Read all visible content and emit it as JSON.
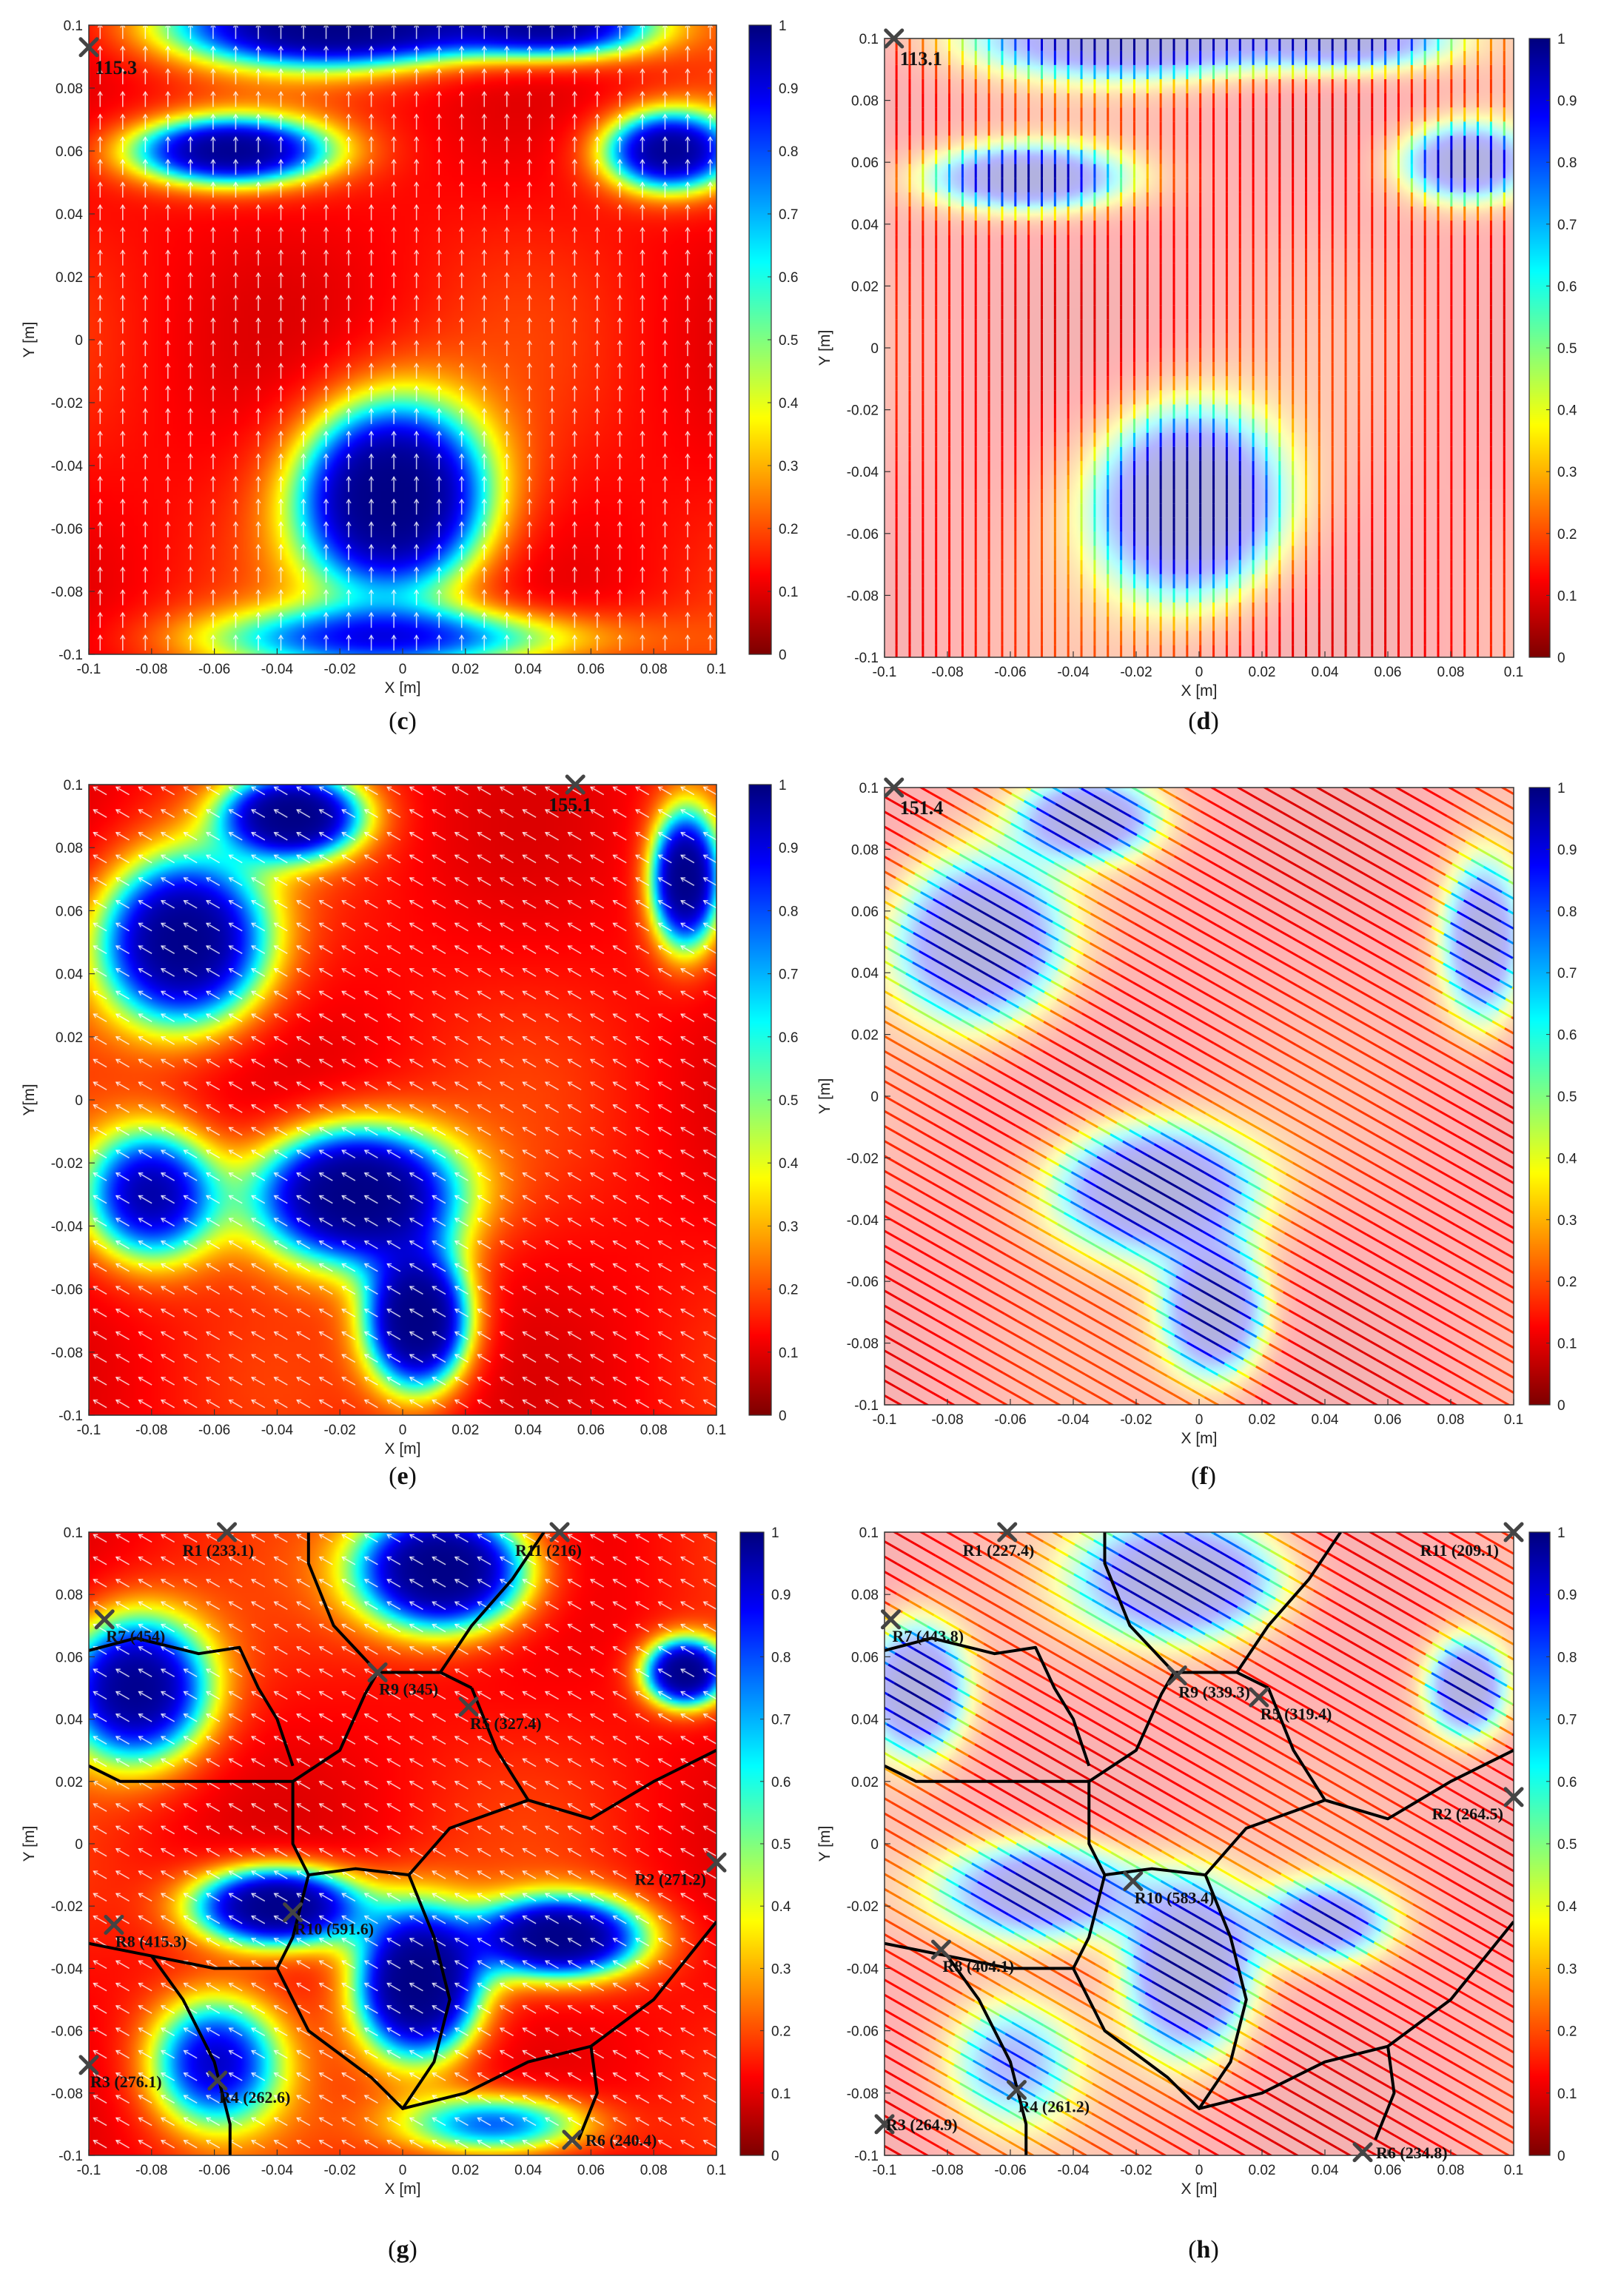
{
  "colormap": {
    "name": "reversed-jet",
    "stops": [
      "#7f0000",
      "#ff0000",
      "#ff8000",
      "#ffff00",
      "#80ff80",
      "#00ffff",
      "#0080ff",
      "#0000ff",
      "#00007f"
    ],
    "ticks": [
      "0",
      "0.1",
      "0.2",
      "0.3",
      "0.4",
      "0.5",
      "0.6",
      "0.7",
      "0.8",
      "0.9",
      "1"
    ]
  },
  "colors": {
    "path": "#ffffff",
    "boundary": "#000000",
    "marker": "#444444"
  },
  "chart_data": [
    {
      "panel": "c",
      "type": "heatmap",
      "overlay": "arrows",
      "angle_deg": 90,
      "xlabel": "X [m]",
      "ylabel": "Y [m]",
      "xlim": [
        -0.1,
        0.1
      ],
      "ylim": [
        -0.1,
        0.1
      ],
      "xticks": [
        "-0.1",
        "-0.08",
        "-0.06",
        "-0.04",
        "-0.02",
        "0",
        "0.02",
        "0.04",
        "0.06",
        "0.08",
        "0.1"
      ],
      "yticks": [
        "-0.1",
        "-0.08",
        "-0.06",
        "-0.04",
        "-0.02",
        "0",
        "0.02",
        "0.04",
        "0.06",
        "0.08",
        "0.1"
      ],
      "clim": [
        0,
        1
      ],
      "markers": [
        {
          "x": -0.1,
          "y": 0.093,
          "label": "115.3"
        }
      ],
      "blobs": [
        {
          "x": -0.003,
          "y": -0.05,
          "sx": 0.028,
          "sy": 0.028,
          "a": 1.0
        },
        {
          "x": -0.055,
          "y": 0.06,
          "sx": 0.03,
          "sy": 0.01,
          "a": 0.8
        },
        {
          "x": 0.085,
          "y": 0.06,
          "sx": 0.02,
          "sy": 0.012,
          "a": 0.8
        },
        {
          "x": -0.02,
          "y": 0.1,
          "sx": 0.05,
          "sy": 0.012,
          "a": 0.9
        },
        {
          "x": 0.05,
          "y": 0.1,
          "sx": 0.03,
          "sy": 0.01,
          "a": 0.7
        },
        {
          "x": 0.0,
          "y": -0.095,
          "sx": 0.06,
          "sy": 0.01,
          "a": 0.5
        }
      ]
    },
    {
      "panel": "d",
      "type": "heatmap",
      "overlay": "raster",
      "angle_deg": 90,
      "xlabel": "X [m]",
      "ylabel": "Y [m]",
      "xlim": [
        -0.1,
        0.1
      ],
      "ylim": [
        -0.1,
        0.1
      ],
      "xticks": [
        "-0.1",
        "-0.08",
        "-0.06",
        "-0.04",
        "-0.02",
        "0",
        "0.02",
        "0.04",
        "0.06",
        "0.08",
        "0.1"
      ],
      "yticks": [
        "-0.1",
        "-0.08",
        "-0.06",
        "-0.04",
        "-0.02",
        "0",
        "0.02",
        "0.04",
        "0.06",
        "0.08",
        "0.1"
      ],
      "clim": [
        0,
        1
      ],
      "markers": [
        {
          "x": -0.097,
          "y": 0.1,
          "label": "113.1"
        }
      ],
      "blobs": [
        {
          "x": -0.003,
          "y": -0.05,
          "sx": 0.028,
          "sy": 0.028,
          "a": 1.0
        },
        {
          "x": -0.055,
          "y": 0.055,
          "sx": 0.03,
          "sy": 0.01,
          "a": 0.8
        },
        {
          "x": 0.085,
          "y": 0.06,
          "sx": 0.02,
          "sy": 0.012,
          "a": 0.8
        },
        {
          "x": -0.02,
          "y": 0.1,
          "sx": 0.05,
          "sy": 0.012,
          "a": 0.8
        },
        {
          "x": 0.05,
          "y": 0.1,
          "sx": 0.03,
          "sy": 0.01,
          "a": 0.7
        }
      ]
    },
    {
      "panel": "e",
      "type": "heatmap",
      "overlay": "arrows",
      "angle_deg": 150,
      "xlabel": "X [m]",
      "ylabel": "Y[m]",
      "xlim": [
        -0.1,
        0.1
      ],
      "ylim": [
        -0.1,
        0.1
      ],
      "xticks": [
        "-0.1",
        "-0.08",
        "-0.06",
        "-0.04",
        "-0.02",
        "0",
        "0.02",
        "0.04",
        "0.06",
        "0.08",
        "0.1"
      ],
      "yticks": [
        "-0.1",
        "-0.08",
        "-0.06",
        "-0.04",
        "-0.02",
        "0",
        "0.02",
        "0.04",
        "0.06",
        "0.08",
        "0.1"
      ],
      "clim": [
        0,
        1
      ],
      "markers": [
        {
          "x": 0.055,
          "y": 0.1,
          "label": "155.1"
        }
      ],
      "blobs": [
        {
          "x": -0.015,
          "y": -0.03,
          "sx": 0.03,
          "sy": 0.02,
          "a": 1.0
        },
        {
          "x": 0.005,
          "y": -0.07,
          "sx": 0.015,
          "sy": 0.02,
          "a": 1.0
        },
        {
          "x": -0.07,
          "y": 0.05,
          "sx": 0.025,
          "sy": 0.025,
          "a": 0.9
        },
        {
          "x": -0.035,
          "y": 0.09,
          "sx": 0.02,
          "sy": 0.012,
          "a": 0.9
        },
        {
          "x": 0.09,
          "y": 0.07,
          "sx": 0.01,
          "sy": 0.02,
          "a": 0.9
        },
        {
          "x": -0.08,
          "y": -0.03,
          "sx": 0.02,
          "sy": 0.02,
          "a": 0.7
        }
      ]
    },
    {
      "panel": "f",
      "type": "heatmap",
      "overlay": "raster",
      "angle_deg": 150,
      "xlabel": "X [m]",
      "ylabel": "Y [m]",
      "xlim": [
        -0.1,
        0.1
      ],
      "ylim": [
        -0.1,
        0.1
      ],
      "xticks": [
        "-0.1",
        "-0.08",
        "-0.06",
        "-0.04",
        "-0.02",
        "0",
        "0.02",
        "0.04",
        "0.06",
        "0.08",
        "0.1"
      ],
      "yticks": [
        "-0.1",
        "-0.08",
        "-0.06",
        "-0.04",
        "-0.02",
        "0",
        "0.02",
        "0.04",
        "0.06",
        "0.08",
        "0.1"
      ],
      "clim": [
        0,
        1
      ],
      "markers": [
        {
          "x": -0.097,
          "y": 0.1,
          "label": "151.4"
        }
      ],
      "blobs": [
        {
          "x": -0.015,
          "y": -0.03,
          "sx": 0.03,
          "sy": 0.02,
          "a": 0.9
        },
        {
          "x": 0.005,
          "y": -0.07,
          "sx": 0.015,
          "sy": 0.02,
          "a": 0.9
        },
        {
          "x": -0.07,
          "y": 0.05,
          "sx": 0.025,
          "sy": 0.025,
          "a": 0.9
        },
        {
          "x": -0.035,
          "y": 0.09,
          "sx": 0.02,
          "sy": 0.012,
          "a": 0.8
        },
        {
          "x": 0.09,
          "y": 0.05,
          "sx": 0.012,
          "sy": 0.025,
          "a": 0.8
        }
      ]
    },
    {
      "panel": "g",
      "type": "heatmap",
      "overlay": "arrows",
      "angle_deg": 150,
      "regions": true,
      "xlabel": "X [m]",
      "ylabel": "Y [m]",
      "xlim": [
        -0.1,
        0.1
      ],
      "ylim": [
        -0.1,
        0.1
      ],
      "xticks": [
        "-0.1",
        "-0.08",
        "-0.06",
        "-0.04",
        "-0.02",
        "0",
        "0.02",
        "0.04",
        "0.06",
        "0.08",
        "0.1"
      ],
      "yticks": [
        "-0.1",
        "-0.08",
        "-0.06",
        "-0.04",
        "-0.02",
        "0",
        "0.02",
        "0.04",
        "0.06",
        "0.08",
        "0.1"
      ],
      "clim": [
        0,
        1
      ],
      "markers": [
        {
          "x": -0.056,
          "y": 0.1,
          "label": "R1 (233.1)"
        },
        {
          "x": 0.1,
          "y": -0.006,
          "label": "R2 (271.2)"
        },
        {
          "x": -0.1,
          "y": -0.071,
          "label": "R3 (276.1)"
        },
        {
          "x": -0.059,
          "y": -0.076,
          "label": "R4 (262.6)"
        },
        {
          "x": 0.021,
          "y": 0.044,
          "label": "R5 (327.4)"
        },
        {
          "x": 0.054,
          "y": -0.095,
          "label": "R6 (240.4)"
        },
        {
          "x": -0.095,
          "y": 0.072,
          "label": "R7 (454)"
        },
        {
          "x": -0.092,
          "y": -0.026,
          "label": "R8 (415.3)"
        },
        {
          "x": -0.008,
          "y": 0.055,
          "label": "R9 (345)"
        },
        {
          "x": -0.035,
          "y": -0.022,
          "label": "R10 (591.6)"
        },
        {
          "x": 0.05,
          "y": 0.1,
          "label": "R11 (216)"
        }
      ],
      "blobs": [
        {
          "x": 0.005,
          "y": -0.045,
          "sx": 0.018,
          "sy": 0.022,
          "a": 1.0
        },
        {
          "x": -0.04,
          "y": -0.02,
          "sx": 0.025,
          "sy": 0.012,
          "a": 0.95
        },
        {
          "x": 0.05,
          "y": -0.03,
          "sx": 0.025,
          "sy": 0.012,
          "a": 0.9
        },
        {
          "x": -0.085,
          "y": 0.05,
          "sx": 0.022,
          "sy": 0.022,
          "a": 0.85
        },
        {
          "x": 0.013,
          "y": 0.088,
          "sx": 0.025,
          "sy": 0.018,
          "a": 1.0
        },
        {
          "x": 0.09,
          "y": 0.055,
          "sx": 0.012,
          "sy": 0.01,
          "a": 0.9
        },
        {
          "x": -0.06,
          "y": -0.07,
          "sx": 0.02,
          "sy": 0.02,
          "a": 0.6
        },
        {
          "x": 0.03,
          "y": -0.09,
          "sx": 0.03,
          "sy": 0.01,
          "a": 0.5
        }
      ]
    },
    {
      "panel": "h",
      "type": "heatmap",
      "overlay": "raster",
      "angle_deg": 150,
      "regions": true,
      "xlabel": "X [m]",
      "ylabel": "Y [m]",
      "xlim": [
        -0.1,
        0.1
      ],
      "ylim": [
        -0.1,
        0.1
      ],
      "xticks": [
        "-0.1",
        "-0.08",
        "-0.06",
        "-0.04",
        "-0.02",
        "0",
        "0.02",
        "0.04",
        "0.06",
        "0.08",
        "0.1"
      ],
      "yticks": [
        "-0.1",
        "-0.08",
        "-0.06",
        "-0.04",
        "-0.02",
        "0",
        "0.02",
        "0.04",
        "0.06",
        "0.08",
        "0.1"
      ],
      "clim": [
        0,
        1
      ],
      "markers": [
        {
          "x": -0.061,
          "y": 0.1,
          "label": "R1 (227.4)"
        },
        {
          "x": 0.1,
          "y": 0.015,
          "label": "R2 (264.5)"
        },
        {
          "x": -0.1,
          "y": -0.09,
          "label": "R3 (264.9)"
        },
        {
          "x": -0.058,
          "y": -0.079,
          "label": "R4 (261.2)"
        },
        {
          "x": 0.019,
          "y": 0.047,
          "label": "R5 (319.4)"
        },
        {
          "x": 0.052,
          "y": -0.099,
          "label": "R6 (234.8)"
        },
        {
          "x": -0.098,
          "y": 0.072,
          "label": "R7 (443.8)"
        },
        {
          "x": -0.082,
          "y": -0.034,
          "label": "R8 (404.1)"
        },
        {
          "x": -0.007,
          "y": 0.054,
          "label": "R9 (339.3)"
        },
        {
          "x": -0.021,
          "y": -0.012,
          "label": "R10 (583.4)"
        },
        {
          "x": 0.1,
          "y": 0.1,
          "label": "R11 (209.1)"
        }
      ],
      "blobs": [
        {
          "x": -0.003,
          "y": -0.04,
          "sx": 0.018,
          "sy": 0.025,
          "a": 1.0
        },
        {
          "x": -0.05,
          "y": -0.015,
          "sx": 0.03,
          "sy": 0.015,
          "a": 0.85
        },
        {
          "x": 0.04,
          "y": -0.025,
          "sx": 0.02,
          "sy": 0.012,
          "a": 0.7
        },
        {
          "x": -0.09,
          "y": 0.05,
          "sx": 0.015,
          "sy": 0.02,
          "a": 0.9
        },
        {
          "x": -0.005,
          "y": 0.085,
          "sx": 0.03,
          "sy": 0.018,
          "a": 0.9
        },
        {
          "x": 0.085,
          "y": 0.05,
          "sx": 0.012,
          "sy": 0.015,
          "a": 0.85
        },
        {
          "x": -0.06,
          "y": -0.07,
          "sx": 0.02,
          "sy": 0.02,
          "a": 0.5
        }
      ]
    }
  ],
  "captions": [
    "(c)",
    "(d)",
    "(e)",
    "(f)",
    "(g)",
    "(h)"
  ],
  "caption_letters": [
    "c",
    "d",
    "e",
    "f",
    "g",
    "h"
  ]
}
